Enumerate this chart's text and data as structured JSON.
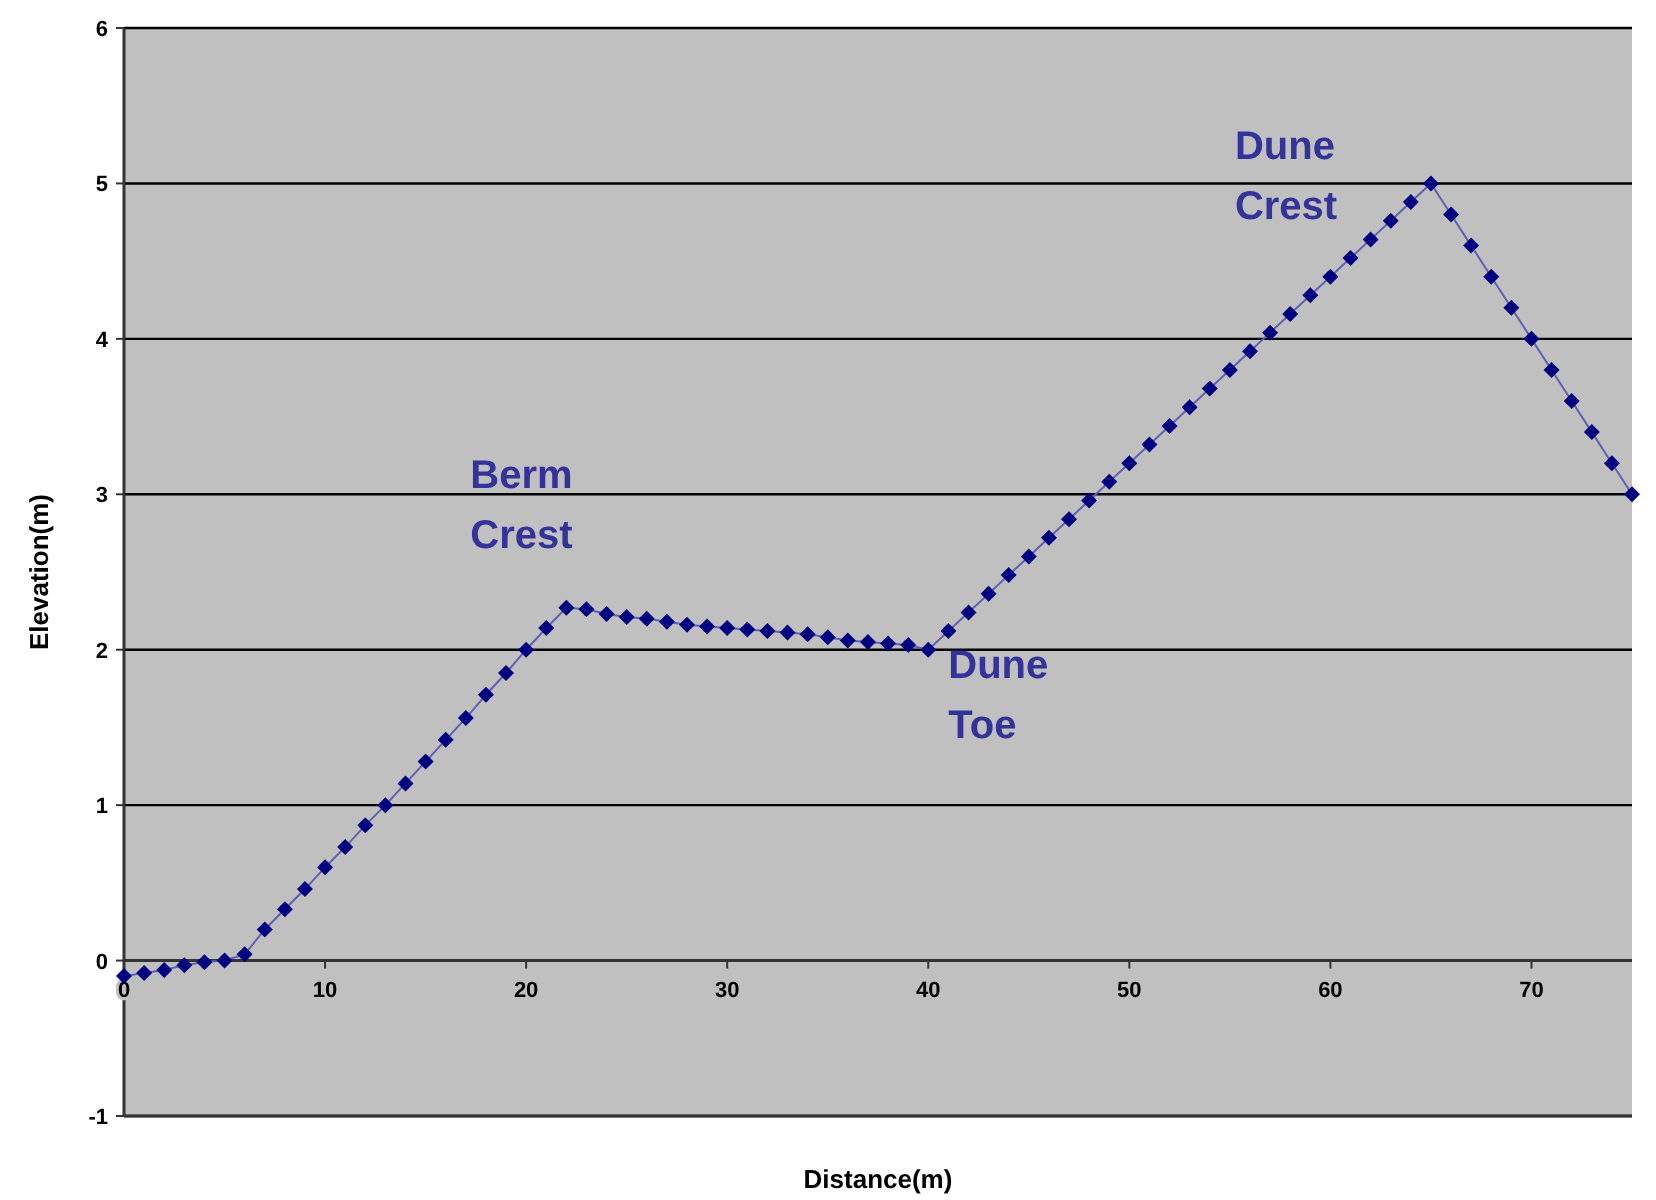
{
  "chart_data": {
    "type": "line",
    "xlabel": "Distance(m)",
    "ylabel": "Elevation(m)",
    "xlim": [
      0,
      75
    ],
    "xticks": [
      0,
      10,
      20,
      30,
      40,
      50,
      60,
      70
    ],
    "ylim": [
      -1,
      6
    ],
    "yticks": [
      -1,
      0,
      1,
      2,
      3,
      4,
      5,
      6
    ],
    "grid": "y",
    "marker": "diamond",
    "line_style": "solid",
    "annotations": [
      {
        "text": "Berm Crest",
        "x": 22,
        "y": 2.27
      },
      {
        "text": "Dune Toe",
        "x": 40,
        "y": 2.0
      },
      {
        "text": "Dune Crest",
        "x": 65,
        "y": 5.0
      }
    ],
    "series": [
      {
        "color": "#000080",
        "x": [
          0,
          1,
          2,
          3,
          4,
          5,
          6,
          7,
          8,
          9,
          10,
          11,
          12,
          13,
          14,
          15,
          16,
          17,
          18,
          19,
          20,
          21,
          22,
          23,
          24,
          25,
          26,
          27,
          28,
          29,
          30,
          31,
          32,
          33,
          34,
          35,
          36,
          37,
          38,
          39,
          40,
          41,
          42,
          43,
          44,
          45,
          46,
          47,
          48,
          49,
          50,
          51,
          52,
          53,
          54,
          55,
          56,
          57,
          58,
          59,
          60,
          61,
          62,
          63,
          64,
          65,
          66,
          67,
          68,
          69,
          70,
          71,
          72,
          73,
          74,
          75
        ],
        "values": [
          -0.1,
          -0.08,
          -0.06,
          -0.03,
          -0.01,
          0.0,
          0.04,
          0.2,
          0.33,
          0.46,
          0.6,
          0.73,
          0.87,
          1.0,
          1.14,
          1.28,
          1.42,
          1.56,
          1.71,
          1.85,
          2.0,
          2.14,
          2.27,
          2.26,
          2.23,
          2.21,
          2.2,
          2.18,
          2.16,
          2.15,
          2.14,
          2.13,
          2.12,
          2.11,
          2.1,
          2.08,
          2.06,
          2.05,
          2.04,
          2.03,
          2.0,
          2.12,
          2.24,
          2.36,
          2.48,
          2.6,
          2.72,
          2.84,
          2.96,
          3.08,
          3.2,
          3.32,
          3.44,
          3.56,
          3.68,
          3.8,
          3.92,
          4.04,
          4.16,
          4.28,
          4.4,
          4.52,
          4.64,
          4.76,
          4.88,
          5.0,
          4.8,
          4.6,
          4.4,
          4.2,
          4.0,
          3.8,
          3.6,
          3.4,
          3.2,
          3.0
        ]
      }
    ]
  }
}
